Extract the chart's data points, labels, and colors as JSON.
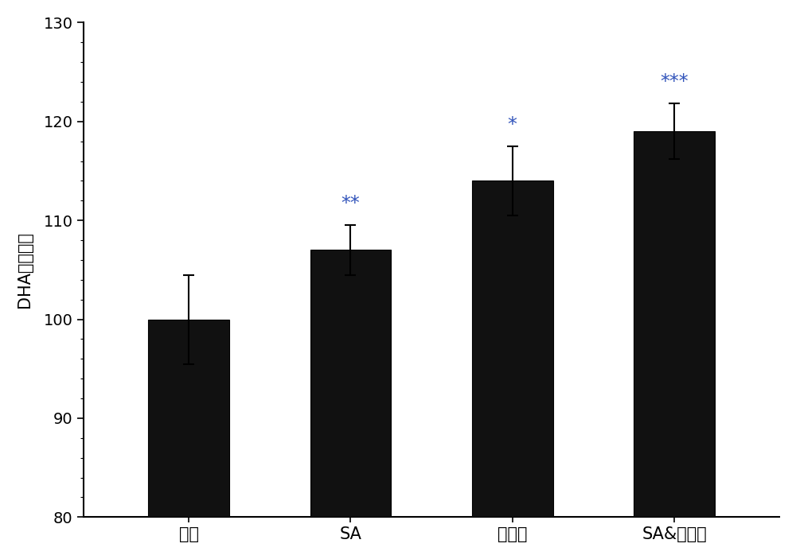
{
  "categories": [
    "对照",
    "SA",
    "乙醇胺",
    "SA&乙醇胺"
  ],
  "values": [
    100.0,
    107.0,
    114.0,
    119.0
  ],
  "errors": [
    4.5,
    2.5,
    3.5,
    2.8
  ],
  "bar_color": "#111111",
  "bar_width": 0.5,
  "ylabel": "DHA百分含量",
  "ylim": [
    80,
    130
  ],
  "yticks": [
    80,
    90,
    100,
    110,
    120,
    130
  ],
  "significance": [
    "",
    "**",
    "*",
    "***"
  ],
  "sig_color": "#3355bb",
  "sig_fontsize": 17,
  "ylabel_fontsize": 15,
  "tick_fontsize": 14,
  "xlabel_fontsize": 15,
  "background_color": "#ffffff",
  "fig_width": 10.0,
  "fig_height": 7.03,
  "dpi": 100,
  "edge_color": "#000000"
}
